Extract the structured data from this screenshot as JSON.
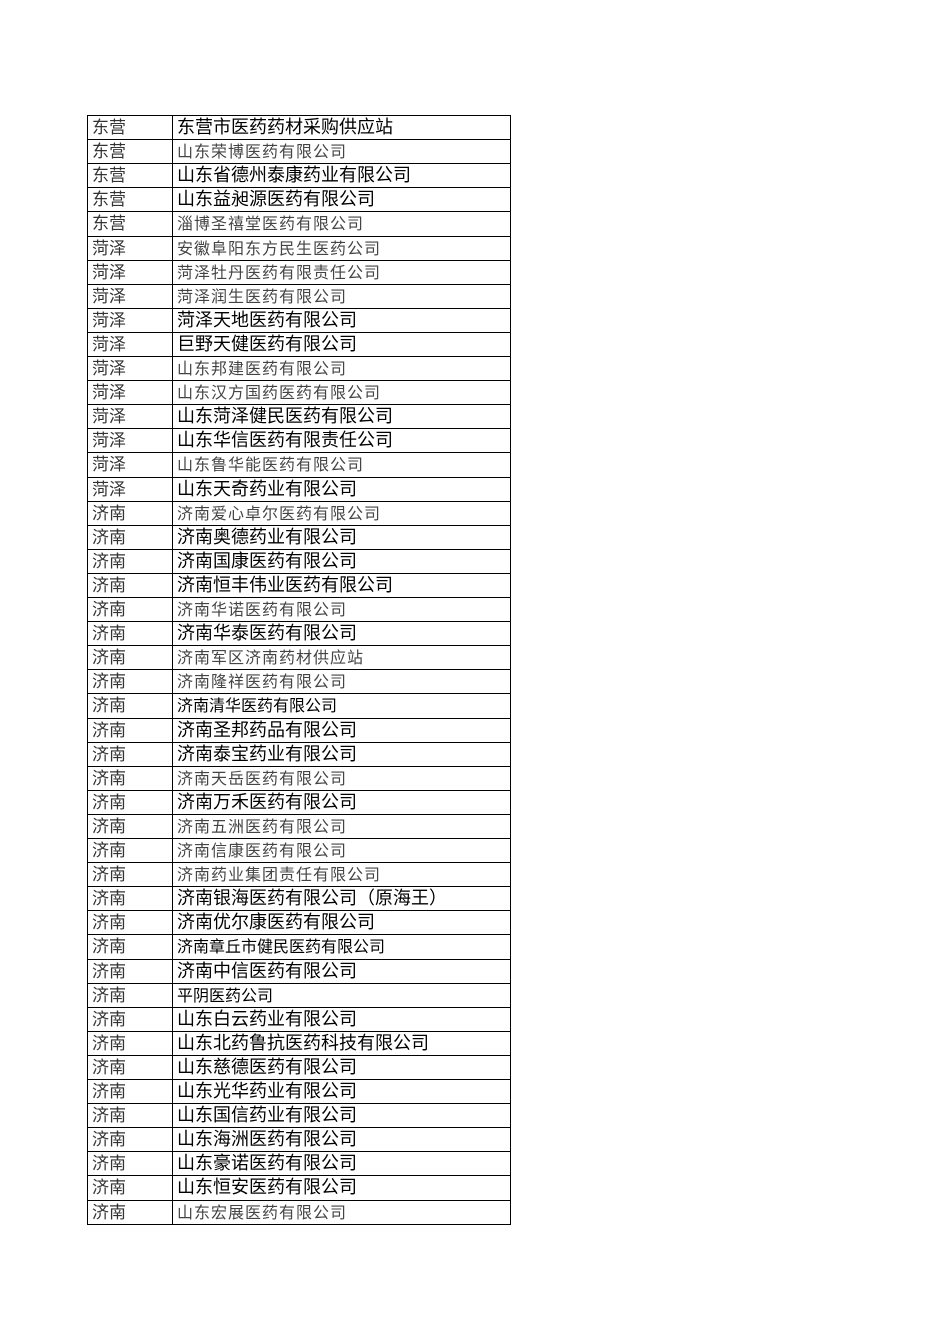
{
  "rows": [
    {
      "region": "东营",
      "company": "东营市医药药材采购供应站"
    },
    {
      "region": "东营",
      "company": "山东荣博医药有限公司"
    },
    {
      "region": "东营",
      "company": "山东省德州泰康药业有限公司"
    },
    {
      "region": "东营",
      "company": "山东益昶源医药有限公司"
    },
    {
      "region": "东营",
      "company": "淄博圣禧堂医药有限公司"
    },
    {
      "region": "菏泽",
      "company": "安徽阜阳东方民生医药公司"
    },
    {
      "region": "菏泽",
      "company": "菏泽牡丹医药有限责任公司"
    },
    {
      "region": "菏泽",
      "company": "菏泽润生医药有限公司"
    },
    {
      "region": "菏泽",
      "company": "菏泽天地医药有限公司"
    },
    {
      "region": "菏泽",
      "company": "巨野天健医药有限公司"
    },
    {
      "region": "菏泽",
      "company": "山东邦建医药有限公司"
    },
    {
      "region": "菏泽",
      "company": "山东汉方国药医药有限公司"
    },
    {
      "region": "菏泽",
      "company": "山东菏泽健民医药有限公司"
    },
    {
      "region": "菏泽",
      "company": "山东华信医药有限责任公司"
    },
    {
      "region": "菏泽",
      "company": "山东鲁华能医药有限公司"
    },
    {
      "region": "菏泽",
      "company": "山东天奇药业有限公司"
    },
    {
      "region": "济南",
      "company": "济南爱心卓尔医药有限公司"
    },
    {
      "region": "济南",
      "company": "济南奥德药业有限公司"
    },
    {
      "region": "济南",
      "company": "济南国康医药有限公司"
    },
    {
      "region": "济南",
      "company": "济南恒丰伟业医药有限公司"
    },
    {
      "region": "济南",
      "company": "济南华诺医药有限公司"
    },
    {
      "region": "济南",
      "company": "济南华泰医药有限公司"
    },
    {
      "region": "济南",
      "company": "济南军区济南药材供应站"
    },
    {
      "region": "济南",
      "company": "济南隆祥医药有限公司"
    },
    {
      "region": "济南",
      "company": "济南清华医药有限公司"
    },
    {
      "region": "济南",
      "company": "济南圣邦药品有限公司"
    },
    {
      "region": "济南",
      "company": "济南泰宝药业有限公司"
    },
    {
      "region": "济南",
      "company": "济南天岳医药有限公司"
    },
    {
      "region": "济南",
      "company": "济南万禾医药有限公司"
    },
    {
      "region": "济南",
      "company": "济南五洲医药有限公司"
    },
    {
      "region": "济南",
      "company": "济南信康医药有限公司"
    },
    {
      "region": "济南",
      "company": "济南药业集团责任有限公司"
    },
    {
      "region": "济南",
      "company": "济南银海医药有限公司（原海王）"
    },
    {
      "region": "济南",
      "company": "济南优尔康医药有限公司"
    },
    {
      "region": "济南",
      "company": "济南章丘市健民医药有限公司"
    },
    {
      "region": "济南",
      "company": "济南中信医药有限公司"
    },
    {
      "region": "济南",
      "company": "平阴医药公司"
    },
    {
      "region": "济南",
      "company": "山东白云药业有限公司"
    },
    {
      "region": "济南",
      "company": "山东北药鲁抗医药科技有限公司"
    },
    {
      "region": "济南",
      "company": "山东慈德医药有限公司"
    },
    {
      "region": "济南",
      "company": "山东光华药业有限公司"
    },
    {
      "region": "济南",
      "company": "山东国信药业有限公司"
    },
    {
      "region": "济南",
      "company": "山东海洲医药有限公司"
    },
    {
      "region": "济南",
      "company": "山东豪诺医药有限公司"
    },
    {
      "region": "济南",
      "company": "山东恒安医药有限公司"
    },
    {
      "region": "济南",
      "company": "山东宏展医药有限公司"
    }
  ]
}
